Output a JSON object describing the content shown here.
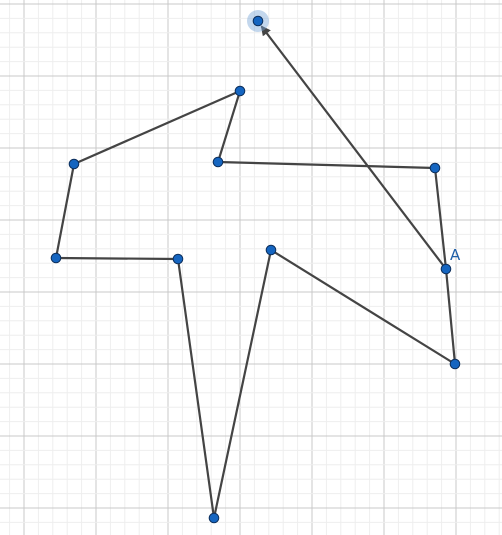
{
  "app": {
    "view": "graphics"
  },
  "colors": {
    "background": "#ffffff",
    "grid_minor": "#eeeeee",
    "grid_major": "#c8c8c8",
    "segment": "#444444",
    "point_fill": "#1565c0",
    "point_stroke": "#0d2f5c",
    "selected_halo": "#7aa6d6",
    "label": "#1f5fa8"
  },
  "points": [
    {
      "id": "P1",
      "label": ""
    },
    {
      "id": "P2",
      "label": ""
    },
    {
      "id": "P3",
      "label": ""
    },
    {
      "id": "P4",
      "label": ""
    },
    {
      "id": "P5",
      "label": ""
    },
    {
      "id": "P6",
      "label": ""
    },
    {
      "id": "P7",
      "label": ""
    },
    {
      "id": "P8",
      "label": ""
    },
    {
      "id": "P9",
      "label": ""
    },
    {
      "id": "P10",
      "label": ""
    },
    {
      "id": "A",
      "label": "A"
    },
    {
      "id": "P12",
      "label": ""
    }
  ],
  "path_order": [
    "P1",
    "P2",
    "P3",
    "P4",
    "P5",
    "P6",
    "P7",
    "P8",
    "P9",
    "P10",
    "A",
    "P12"
  ],
  "arrow_end": true,
  "selected_point": "P12"
}
